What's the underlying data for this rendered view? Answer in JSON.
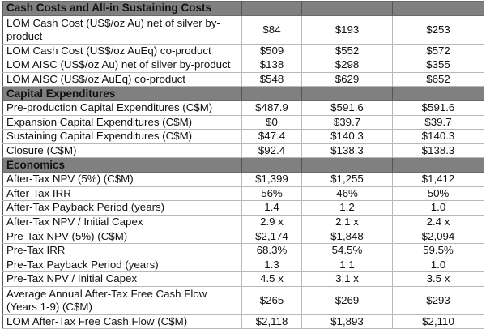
{
  "sections": [
    {
      "title": "Cash Costs and All-in Sustaining Costs",
      "rows": [
        {
          "label": "LOM Cash Cost (US$/oz Au) net of silver by-product",
          "values": [
            "$84",
            "$193",
            "$253"
          ],
          "two_line": true
        },
        {
          "label": "LOM Cash Cost (US$/oz AuEq) co-product",
          "values": [
            "$509",
            "$552",
            "$572"
          ]
        },
        {
          "label": "LOM AISC (US$/oz Au) net of silver by-product",
          "values": [
            "$138",
            "$298",
            "$355"
          ]
        },
        {
          "label": "LOM AISC (US$/oz AuEq) co-product",
          "values": [
            "$548",
            "$629",
            "$652"
          ]
        }
      ]
    },
    {
      "title": "Capital Expenditures",
      "rows": [
        {
          "label": "Pre-production Capital Expenditures (C$M)",
          "values": [
            "$487.9",
            "$591.6",
            "$591.6"
          ]
        },
        {
          "label": "Expansion Capital Expenditures (C$M)",
          "values": [
            "$0",
            "$39.7",
            "$39.7"
          ]
        },
        {
          "label": "Sustaining Capital Expenditures (C$M)",
          "values": [
            "$47.4",
            "$140.3",
            "$140.3"
          ]
        },
        {
          "label": "Closure (C$M)",
          "values": [
            "$92.4",
            "$138.3",
            "$138.3"
          ]
        }
      ]
    },
    {
      "title": "Economics",
      "rows": [
        {
          "label": "After-Tax NPV (5%) (C$M)",
          "values": [
            "$1,399",
            "$1,255",
            "$1,412"
          ]
        },
        {
          "label": "After-Tax IRR",
          "values": [
            "56%",
            "46%",
            "50%"
          ]
        },
        {
          "label": "After-Tax Payback Period (years)",
          "values": [
            "1.4",
            "1.2",
            "1.0"
          ]
        },
        {
          "label": "After-Tax NPV / Initial Capex",
          "values": [
            "2.9 x",
            "2.1 x",
            "2.4 x"
          ]
        },
        {
          "label": "Pre-Tax NPV (5%) (C$M)",
          "values": [
            "$2,174",
            "$1,848",
            "$2,094"
          ]
        },
        {
          "label": "Pre-Tax IRR",
          "values": [
            "68.3%",
            "54.5%",
            "59.5%"
          ]
        },
        {
          "label": "Pre-Tax Payback Period (years)",
          "values": [
            "1.3",
            "1.1",
            "1.0"
          ]
        },
        {
          "label": "Pre-Tax NPV / Initial Capex",
          "values": [
            "4.5 x",
            "3.1 x",
            "3.5 x"
          ]
        },
        {
          "label": "Average Annual After-Tax Free Cash Flow (Years 1-9)  (C$M)",
          "values": [
            "$265",
            "$269",
            "$293"
          ],
          "two_line": true
        },
        {
          "label": "LOM After-Tax Free Cash Flow (C$M)",
          "values": [
            "$2,118",
            "$1,893",
            "$2,110"
          ]
        }
      ]
    }
  ]
}
